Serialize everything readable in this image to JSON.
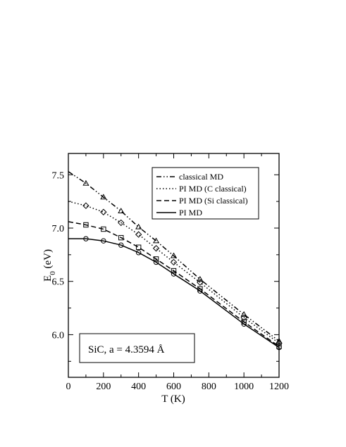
{
  "chart_data": {
    "type": "line",
    "xlabel": "T (K)",
    "ylabel_main": "E",
    "ylabel_sub": "0",
    "ylabel_unit": " (eV)",
    "xlim": [
      0,
      1200
    ],
    "ylim": [
      5.6,
      7.7
    ],
    "xticks": [
      "0",
      "200",
      "400",
      "600",
      "800",
      "1000",
      "1200"
    ],
    "yticks": [
      "6.0",
      "6.5",
      "7.0",
      "7.5"
    ],
    "grid": false,
    "legend_position": "top-right",
    "annotation": "SiC, a = 4.3594 Å",
    "series": [
      {
        "name": "classical MD",
        "marker": "triangle",
        "points_x": [
          100,
          200,
          300,
          400,
          500,
          600,
          750,
          1000,
          1200
        ],
        "points_y": [
          7.42,
          7.29,
          7.16,
          7.01,
          6.88,
          6.74,
          6.52,
          6.19,
          5.94
        ],
        "curve_x": [
          0,
          100,
          200,
          300,
          400,
          500,
          600,
          750,
          1000,
          1200
        ],
        "curve_y": [
          7.53,
          7.42,
          7.29,
          7.16,
          7.01,
          6.88,
          6.74,
          6.52,
          6.19,
          5.94
        ]
      },
      {
        "name": "PI MD (C  classical)",
        "marker": "diamond",
        "points_x": [
          100,
          200,
          300,
          400,
          500,
          600,
          750,
          1000,
          1200
        ],
        "points_y": [
          7.21,
          7.15,
          7.05,
          6.94,
          6.81,
          6.68,
          6.49,
          6.16,
          5.92
        ],
        "curve_x": [
          0,
          100,
          200,
          300,
          400,
          500,
          600,
          750,
          1000,
          1200
        ],
        "curve_y": [
          7.25,
          7.21,
          7.15,
          7.05,
          6.94,
          6.81,
          6.68,
          6.49,
          6.16,
          5.92
        ]
      },
      {
        "name": "PI MD (Si classical)",
        "marker": "square",
        "points_x": [
          100,
          200,
          300,
          400,
          500,
          600,
          750,
          1000,
          1200
        ],
        "points_y": [
          7.03,
          6.99,
          6.91,
          6.82,
          6.71,
          6.6,
          6.43,
          6.12,
          5.89
        ],
        "curve_x": [
          0,
          100,
          200,
          300,
          400,
          500,
          600,
          750,
          1000,
          1200
        ],
        "curve_y": [
          7.06,
          7.03,
          6.99,
          6.91,
          6.82,
          6.71,
          6.6,
          6.43,
          6.12,
          5.89
        ]
      },
      {
        "name": "PI MD",
        "marker": "circle",
        "points_x": [
          100,
          200,
          300,
          400,
          500,
          600,
          750,
          1000,
          1200
        ],
        "points_y": [
          6.9,
          6.88,
          6.84,
          6.77,
          6.68,
          6.57,
          6.41,
          6.1,
          5.88
        ],
        "curve_x": [
          0,
          100,
          200,
          300,
          400,
          500,
          600,
          750,
          1000,
          1200
        ],
        "curve_y": [
          6.9,
          6.9,
          6.88,
          6.84,
          6.77,
          6.68,
          6.57,
          6.41,
          6.1,
          5.88
        ]
      }
    ]
  }
}
